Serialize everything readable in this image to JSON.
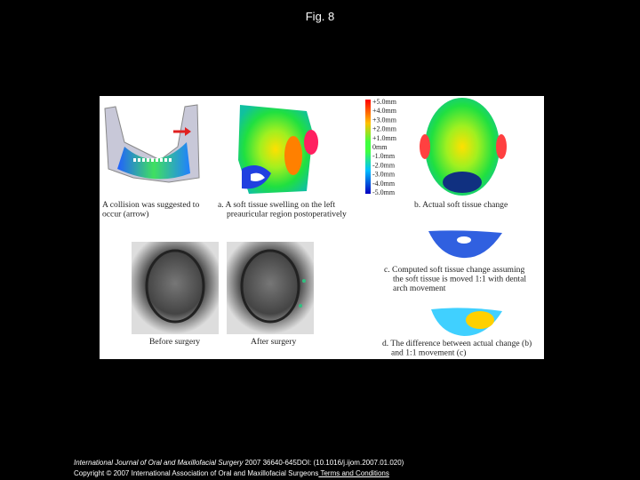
{
  "header": {
    "title": "Fig. 8"
  },
  "figure": {
    "scale_labels": [
      "+5.0mm",
      "+4.0mm",
      "+3.0mm",
      "+2.0mm",
      "+1.0mm",
      "0mm",
      "-1.0mm",
      "-2.0mm",
      "-3.0mm",
      "-4.0mm",
      "-5.0mm"
    ],
    "captions": {
      "collision": [
        "A collision was suggested to",
        "occur (arrow)"
      ],
      "a": [
        "a. A soft tissue swelling on the left",
        "preauricular region postoperatively"
      ],
      "b": [
        "b. Actual soft tissue change"
      ],
      "c": [
        "c. Computed soft tissue change assuming",
        "the soft tissue is moved 1:1 with dental",
        "arch movement"
      ],
      "before": [
        "Before surgery"
      ],
      "after": [
        "After surgery"
      ],
      "d": [
        "d. The difference between actual change (b)",
        "and 1:1 movement (c)"
      ]
    }
  },
  "footer": {
    "journal": "International Journal of Oral and Maxillofacial Surgery",
    "citation": " 2007 36640-645DOI: (10.1016/j.ijom.2007.01.020)",
    "copyright": "Copyright © 2007 International Association of Oral and Maxillofacial Surgeons",
    "link": " Terms and Conditions"
  }
}
